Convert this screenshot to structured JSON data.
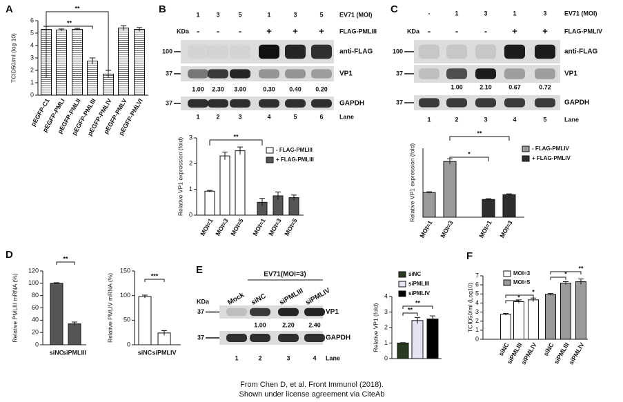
{
  "panel_labels": [
    "A",
    "B",
    "C",
    "D",
    "E",
    "F"
  ],
  "chart_data": [
    {
      "type": "bar",
      "ylabel": "TCID50/ml (log 10)",
      "categories": [
        "pEGFP-C1",
        "pEGFP-PMLI",
        "pEGFP-PMLII",
        "pEGFP-PMLIII",
        "pEGFP-PMLIV",
        "pEGFP-PMLV",
        "pEGFP-PMLVI"
      ],
      "series": [
        {
          "color": "#ffffff",
          "hatch": true,
          "values": [
            5.3,
            5.25,
            5.3,
            2.75,
            1.7,
            5.4,
            5.3
          ],
          "errors": [
            0.25,
            0.08,
            0.08,
            0.25,
            0.3,
            0.2,
            0.15
          ]
        }
      ],
      "ylim": [
        0,
        6
      ],
      "yticks": [
        0,
        1,
        2,
        3,
        4,
        5,
        6
      ],
      "significance": [
        "**",
        "**"
      ]
    },
    {
      "type": "bar",
      "ylabel": "Relative VP1 expression (fold)",
      "categories": [
        "MOI=1",
        "MOI=3",
        "MOI=5",
        "MOI=1",
        "MOI=3",
        "MOI=5"
      ],
      "series": [
        {
          "name": "- FLAG-PMLIII",
          "color": "#ffffff",
          "values": [
            0.93,
            2.3,
            2.5,
            null,
            null,
            null
          ],
          "errors": [
            0.03,
            0.15,
            0.15,
            null,
            null,
            null
          ]
        },
        {
          "name": "+ FLAG-PMLIII",
          "color": "#555555",
          "values": [
            null,
            null,
            null,
            0.5,
            0.75,
            0.68
          ],
          "errors": [
            null,
            null,
            null,
            0.15,
            0.15,
            0.1
          ]
        }
      ],
      "ylim": [
        0,
        3
      ],
      "yticks": [
        0,
        1,
        2,
        3
      ],
      "significance": [
        "**"
      ]
    },
    {
      "type": "bar",
      "ylabel": "Relative VP1 expression (fold)",
      "categories": [
        "MOI=1",
        "MOI=3",
        "MOI=1",
        "MOI=3"
      ],
      "series": [
        {
          "name": "- FLAG-PMLIV",
          "color": "#9a9a9a",
          "values": [
            0.93,
            2.1,
            null,
            null
          ],
          "errors": [
            0.03,
            0.1,
            null,
            null
          ]
        },
        {
          "name": "+ FLAG-PMLIV",
          "color": "#2e2e2e",
          "values": [
            null,
            null,
            0.67,
            0.85
          ],
          "errors": [
            null,
            null,
            0.03,
            0.03
          ]
        }
      ],
      "ylim": [
        0,
        2.6
      ],
      "significance": [
        "*",
        "**"
      ]
    },
    {
      "type": "bar",
      "ylabel": "Relative PMLIII mRNA (%)",
      "categories": [
        "siNC",
        "siPMLIII"
      ],
      "series": [
        {
          "color": "#555555",
          "values": [
            100,
            34
          ],
          "errors": [
            1,
            3
          ]
        }
      ],
      "ylim": [
        0,
        120
      ],
      "yticks": [
        0,
        20,
        40,
        60,
        80,
        100,
        120
      ],
      "significance": [
        "**"
      ]
    },
    {
      "type": "bar",
      "ylabel": "Relative PMLIV mRNA (%)",
      "categories": [
        "siNC",
        "siPMLIV"
      ],
      "series": [
        {
          "color": "#ffffff",
          "values": [
            98,
            24
          ],
          "errors": [
            3,
            5
          ]
        }
      ],
      "ylim": [
        0,
        150
      ],
      "yticks": [
        0,
        50,
        100,
        150
      ],
      "significance": [
        "***"
      ]
    },
    {
      "type": "bar",
      "ylabel": "Relative VP1 (fold)",
      "categories": [
        null,
        null,
        null
      ],
      "series": [
        {
          "name": "siNC",
          "color": "#2b3a1f",
          "values": [
            1.0,
            null,
            null
          ],
          "errors": [
            0.03,
            null,
            null
          ]
        },
        {
          "name": "siPMLIII",
          "color": "#e4e4f4",
          "values": [
            null,
            2.45,
            null
          ],
          "errors": [
            null,
            0.2,
            null
          ]
        },
        {
          "name": "siPMLIV",
          "color": "#000000",
          "values": [
            null,
            null,
            2.55
          ],
          "errors": [
            null,
            null,
            0.2
          ]
        }
      ],
      "ylim": [
        0,
        4
      ],
      "yticks": [
        0,
        1,
        2,
        3,
        4
      ],
      "significance": [
        "**",
        "**"
      ]
    },
    {
      "type": "bar",
      "ylabel": "TCID50/ml (Log10)",
      "categories": [
        "siNC",
        "siPMLIII",
        "siPMLIV",
        "siNC",
        "siPMLIII",
        "siPMLIV"
      ],
      "series": [
        {
          "name": "MOI=3",
          "color": "#ffffff",
          "values": [
            2.75,
            4.15,
            4.35,
            null,
            null,
            null
          ],
          "errors": [
            0.1,
            0.2,
            0.2,
            null,
            null,
            null
          ]
        },
        {
          "name": "MOI=5",
          "color": "#9a9a9a",
          "values": [
            null,
            null,
            null,
            4.95,
            6.2,
            6.35
          ],
          "errors": [
            null,
            null,
            null,
            0.1,
            0.15,
            0.3
          ]
        }
      ],
      "ylim": [
        0,
        7
      ],
      "yticks": [
        0,
        1,
        2,
        3,
        4,
        5,
        6,
        7
      ],
      "significance": [
        "*",
        "*",
        "*",
        "**"
      ]
    }
  ],
  "blots": [
    {
      "ev71_label": "EV71 (MOI)",
      "moi": [
        "1",
        "3",
        "5",
        "1",
        "3",
        "5"
      ],
      "kda": "KDa",
      "flag": [
        "-",
        "-",
        "-",
        "+",
        "+",
        "+"
      ],
      "flag_label": "FLAG-PMLIII",
      "rows": [
        {
          "marker": "100",
          "label": "anti-FLAG"
        },
        {
          "marker": "37",
          "label": "VP1"
        },
        {
          "marker": "37",
          "label": "GAPDH"
        }
      ],
      "quant": [
        "1.00",
        "2.30",
        "3.00",
        "0.30",
        "0.40",
        "0.20"
      ],
      "lanes": [
        "1",
        "2",
        "3",
        "4",
        "5",
        "6"
      ],
      "lane_label": "Lane"
    },
    {
      "ev71_label": "EV71 (MOI)",
      "moi": [
        "-",
        "1",
        "3",
        "1",
        "3"
      ],
      "kda": "KDa",
      "flag": [
        "-",
        "-",
        "-",
        "+",
        "+"
      ],
      "flag_label": "FLAG-PMLIV",
      "rows": [
        {
          "marker": "100",
          "label": "anti-FLAG"
        },
        {
          "marker": "37",
          "label": "VP1"
        },
        {
          "marker": "37",
          "label": "GAPDH"
        }
      ],
      "quant": [
        "1.00",
        "2.10",
        "0.67",
        "0.72"
      ],
      "lanes": [
        "1",
        "2",
        "3",
        "4",
        "5"
      ],
      "lane_label": "Lane"
    },
    {
      "ev71_label": "EV71(MOI=3)",
      "names": [
        "Mock",
        "siNC",
        "siPMLIII",
        "siPMLIV"
      ],
      "kda": "KDa",
      "rows": [
        {
          "marker": "37",
          "label": "VP1"
        },
        {
          "marker": "37",
          "label": "GAPDH"
        }
      ],
      "quant": [
        "1.00",
        "2.20",
        "2.40"
      ],
      "lanes": [
        "1",
        "2",
        "3",
        "4"
      ],
      "lane_label": "Lane"
    }
  ],
  "footer": [
    "From Chen D, et al. Front Immunol (2018).",
    "Shown under license agreement via CiteAb"
  ]
}
